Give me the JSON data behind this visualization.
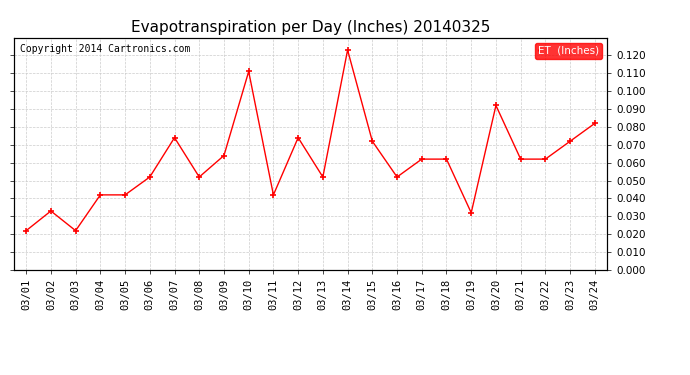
{
  "title": "Evapotranspiration per Day (Inches) 20140325",
  "copyright_text": "Copyright 2014 Cartronics.com",
  "legend_label": "ET  (Inches)",
  "dates": [
    "03/01",
    "03/02",
    "03/03",
    "03/04",
    "03/05",
    "03/06",
    "03/07",
    "03/08",
    "03/09",
    "03/10",
    "03/11",
    "03/12",
    "03/13",
    "03/14",
    "03/15",
    "03/16",
    "03/17",
    "03/18",
    "03/19",
    "03/20",
    "03/21",
    "03/22",
    "03/23",
    "03/24"
  ],
  "values": [
    0.022,
    0.033,
    0.022,
    0.042,
    0.042,
    0.052,
    0.074,
    0.052,
    0.064,
    0.111,
    0.042,
    0.074,
    0.052,
    0.123,
    0.072,
    0.052,
    0.062,
    0.062,
    0.032,
    0.092,
    0.062,
    0.062,
    0.072,
    0.082
  ],
  "ylim": [
    0.0,
    0.13
  ],
  "yticks": [
    0.0,
    0.01,
    0.02,
    0.03,
    0.04,
    0.05,
    0.06,
    0.07,
    0.08,
    0.09,
    0.1,
    0.11,
    0.12
  ],
  "line_color": "red",
  "marker": "+",
  "grid_color": "#cccccc",
  "background_color": "white",
  "legend_bg": "red",
  "legend_text_color": "white",
  "title_fontsize": 11,
  "tick_fontsize": 7.5,
  "copyright_fontsize": 7
}
